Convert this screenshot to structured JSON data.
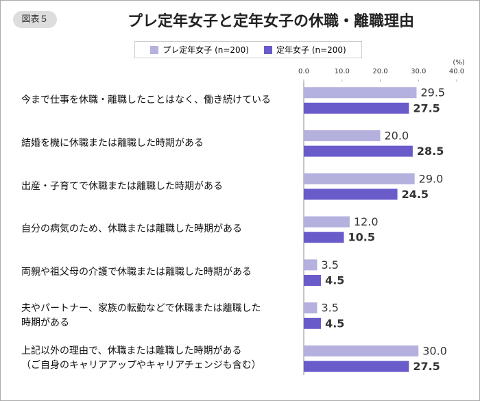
{
  "badge": "図表５",
  "chart_data": {
    "type": "hbar",
    "title": "プレ定年女子と定年女子の休職・離職理由",
    "unit": "(%)",
    "categories": [
      "今まで仕事を休職・離職したことはなく、働き続けている",
      "結婚を機に休職または離職した時期がある",
      "出産・子育てで休職または離職した時期がある",
      "自分の病気のため、休職または離職した時期がある",
      "両親や祖父母の介護で休職または離職した時期がある",
      "夫やパートナー、家族の転勤などで休職または離職した\n時期がある",
      "上記以外の理由で、休職または離職した時期がある\n（ご自身のキャリアアップやキャリアチェンジも含む）"
    ],
    "series": [
      {
        "name": "プレ定年女子 (n=200)",
        "color": "#b4b1de",
        "label_color": "#a9a7cf",
        "values": [
          29.5,
          20.0,
          29.0,
          12.0,
          3.5,
          3.5,
          30.0
        ],
        "value_labels": [
          "29.5",
          "20.0",
          "29.0",
          "12.0",
          "3.5",
          "3.5",
          "30.0"
        ]
      },
      {
        "name": "定年女子 (n=200)",
        "color": "#6a5bcb",
        "label_color": "#5d50c0",
        "values": [
          27.5,
          28.5,
          24.5,
          10.5,
          4.5,
          4.5,
          27.5
        ],
        "value_labels": [
          "27.5",
          "28.5",
          "24.5",
          "10.5",
          "4.5",
          "4.5",
          "27.5"
        ]
      }
    ],
    "xlim": [
      0,
      40
    ],
    "xticks": [
      {
        "value": 0,
        "label": "0.0"
      },
      {
        "value": 10,
        "label": "10.0"
      },
      {
        "value": 20,
        "label": "20.0"
      },
      {
        "value": 30,
        "label": "30.0"
      },
      {
        "value": 40,
        "label": "40.0"
      }
    ]
  }
}
